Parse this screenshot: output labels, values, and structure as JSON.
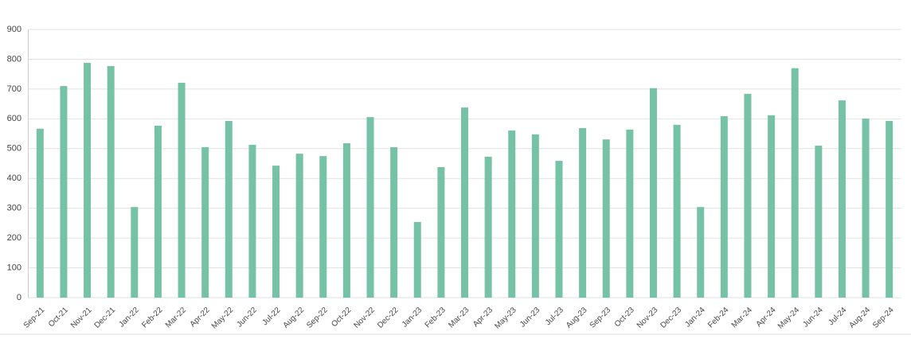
{
  "chart_data": {
    "type": "bar",
    "categories": [
      "Sep-21",
      "Oct-21",
      "Nov-21",
      "Dec-21",
      "Jan-22",
      "Feb-22",
      "Mar-22",
      "Apr-22",
      "May-22",
      "Jun-22",
      "Jul-22",
      "Aug-22",
      "Sep-22",
      "Oct-22",
      "Nov-22",
      "Dec-22",
      "Jan-23",
      "Feb-23",
      "Mar-23",
      "Apr-23",
      "May-23",
      "Jun-23",
      "Jul-23",
      "Aug-23",
      "Sep-23",
      "Oct-23",
      "Nov-23",
      "Dec-23",
      "Jan-24",
      "Feb-24",
      "Mar-24",
      "Apr-24",
      "May-24",
      "Jun-24",
      "Jul-24",
      "Aug-24",
      "Sep-24"
    ],
    "values": [
      567,
      710,
      788,
      777,
      304,
      577,
      721,
      505,
      593,
      513,
      443,
      483,
      475,
      518,
      606,
      505,
      254,
      438,
      638,
      473,
      561,
      548,
      459,
      569,
      531,
      564,
      703,
      580,
      304,
      609,
      684,
      612,
      770,
      510,
      662,
      601,
      593
    ],
    "color": "#76c2a6",
    "ylim": [
      0,
      900
    ],
    "yticks": [
      0,
      100,
      200,
      300,
      400,
      500,
      600,
      700,
      800,
      900
    ],
    "grid": true
  }
}
